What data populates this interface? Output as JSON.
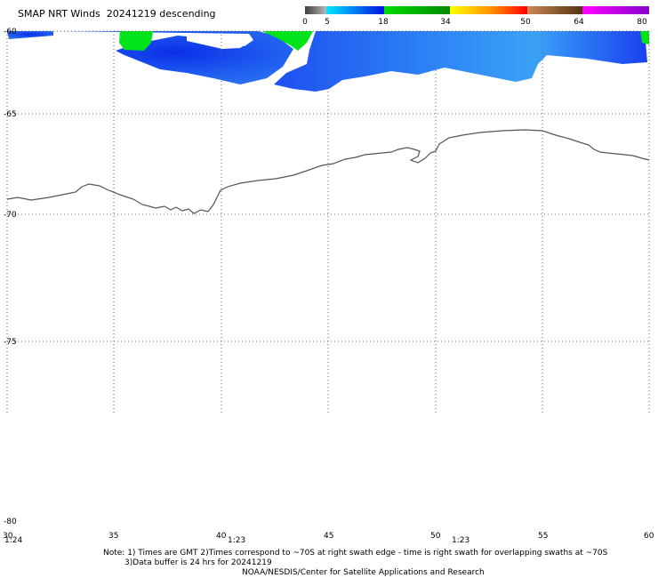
{
  "title": "SMAP NRT Winds  20241219 descending",
  "colorbar": {
    "labels": [
      "0",
      "5",
      "18",
      "34",
      "50",
      "64",
      "80"
    ],
    "stops": [
      {
        "from": 0,
        "to": 5,
        "colors": [
          "#404040",
          "#b8b8b8"
        ]
      },
      {
        "from": 5,
        "to": 18,
        "colors": [
          "#00e8ff",
          "#0010e0"
        ]
      },
      {
        "from": 18,
        "to": 34,
        "colors": [
          "#00dd00",
          "#008800"
        ]
      },
      {
        "from": 34,
        "to": 50,
        "colors": [
          "#ffff00",
          "#ff9900",
          "#ff0000"
        ]
      },
      {
        "from": 50,
        "to": 64,
        "colors": [
          "#cc8855",
          "#553311"
        ]
      },
      {
        "from": 64,
        "to": 80,
        "colors": [
          "#ff00ff",
          "#8800cc"
        ]
      }
    ]
  },
  "map": {
    "lon_ticks": [
      "30",
      "35",
      "40",
      "45",
      "50",
      "55",
      "60"
    ],
    "lat_ticks": [
      "-60",
      "-65",
      "-70",
      "-75",
      "-80"
    ],
    "time_labels": [
      "1:24",
      "1:23",
      "1:23"
    ]
  },
  "footer": {
    "note_line1": "Note: 1) Times are GMT 2)Times correspond to ~70S at right swath edge - time is right swath for overlapping swaths at ~70S",
    "note_line2": "3)Data buffer is 24 hrs for 20241219",
    "credit": "NOAA/NESDIS/Center for Satellite Applications and Research"
  }
}
